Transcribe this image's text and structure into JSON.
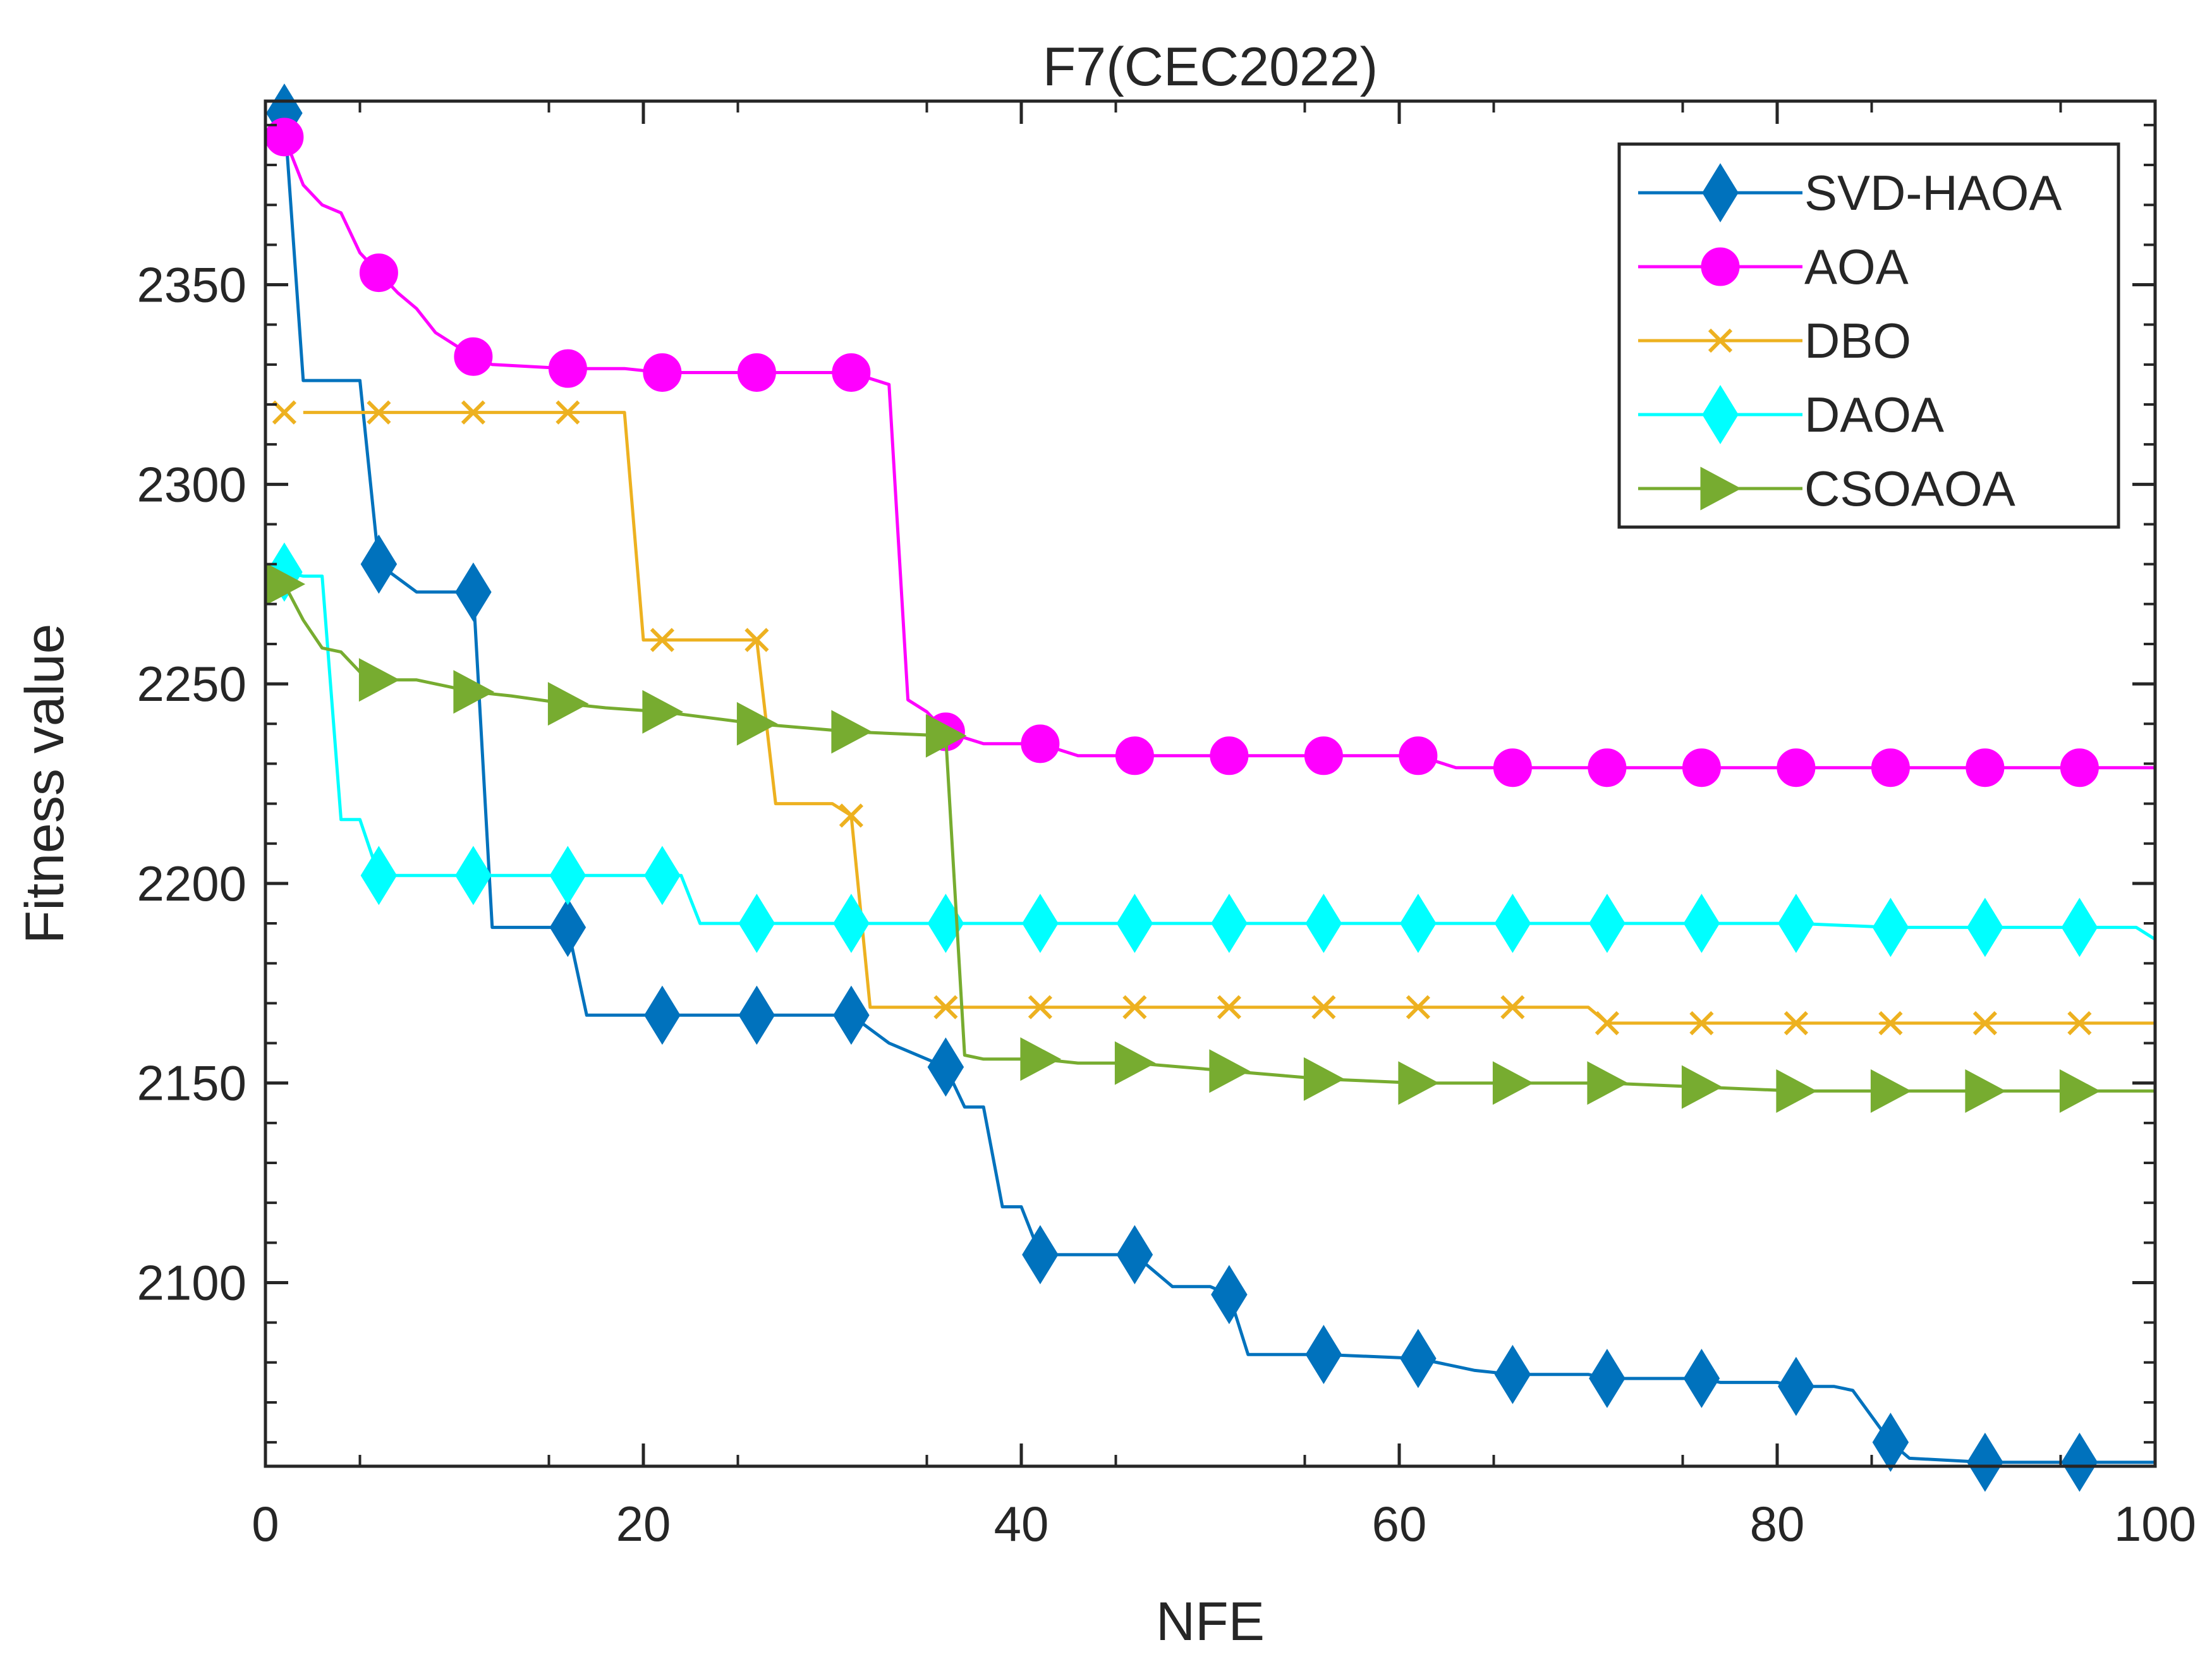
{
  "chart_data": {
    "type": "line",
    "title": "F7(CEC2022)",
    "xlabel": "NFE",
    "ylabel": "Fitness value",
    "xlim": [
      0,
      100
    ],
    "ylim": [
      2054,
      2396
    ],
    "xticks": [
      0,
      20,
      40,
      60,
      80,
      100
    ],
    "yticks": [
      2100,
      2150,
      2200,
      2250,
      2300,
      2350
    ],
    "grid": false,
    "legend_position": "top-right",
    "series": [
      {
        "name": "SVD-HAOA",
        "color": "#0072BD",
        "marker": "diamond",
        "marker_x": [
          1,
          6,
          11,
          16,
          21,
          26,
          31,
          36,
          41,
          46,
          51,
          56,
          61,
          66,
          71,
          76,
          81,
          86,
          91,
          96
        ],
        "points": [
          [
            1,
            2393
          ],
          [
            2,
            2326
          ],
          [
            5,
            2326
          ],
          [
            6,
            2280
          ],
          [
            8,
            2273
          ],
          [
            11,
            2273
          ],
          [
            12,
            2189
          ],
          [
            16,
            2189
          ],
          [
            17,
            2167
          ],
          [
            31,
            2167
          ],
          [
            33,
            2160
          ],
          [
            36,
            2154
          ],
          [
            37,
            2144
          ],
          [
            38,
            2144
          ],
          [
            39,
            2119
          ],
          [
            40,
            2119
          ],
          [
            41,
            2107
          ],
          [
            46,
            2107
          ],
          [
            48,
            2099
          ],
          [
            50,
            2099
          ],
          [
            51,
            2097
          ],
          [
            52,
            2082
          ],
          [
            56,
            2082
          ],
          [
            61,
            2081
          ],
          [
            64,
            2078
          ],
          [
            66,
            2077
          ],
          [
            70,
            2077
          ],
          [
            71,
            2076
          ],
          [
            76,
            2076
          ],
          [
            77,
            2075
          ],
          [
            80,
            2075
          ],
          [
            81,
            2074
          ],
          [
            83,
            2074
          ],
          [
            84,
            2073
          ],
          [
            86,
            2060
          ],
          [
            87,
            2056
          ],
          [
            91,
            2055
          ],
          [
            96,
            2055
          ],
          [
            100,
            2055
          ]
        ]
      },
      {
        "name": "AOA",
        "color": "#FF00FF",
        "marker": "circle",
        "marker_x": [
          1,
          6,
          11,
          16,
          21,
          26,
          31,
          36,
          41,
          46,
          51,
          56,
          61,
          66,
          71,
          76,
          81,
          86,
          91,
          96
        ],
        "points": [
          [
            1,
            2387
          ],
          [
            2,
            2375
          ],
          [
            3,
            2370
          ],
          [
            4,
            2368
          ],
          [
            5,
            2358
          ],
          [
            6,
            2353
          ],
          [
            7,
            2348
          ],
          [
            8,
            2344
          ],
          [
            9,
            2338
          ],
          [
            10,
            2335
          ],
          [
            11,
            2332
          ],
          [
            12,
            2330
          ],
          [
            16,
            2329
          ],
          [
            19,
            2329
          ],
          [
            21,
            2328
          ],
          [
            26,
            2328
          ],
          [
            31,
            2328
          ],
          [
            33,
            2325
          ],
          [
            34,
            2246
          ],
          [
            35,
            2243
          ],
          [
            36,
            2238
          ],
          [
            38,
            2235
          ],
          [
            41,
            2235
          ],
          [
            43,
            2232
          ],
          [
            46,
            2232
          ],
          [
            61,
            2232
          ],
          [
            63,
            2229
          ],
          [
            100,
            2229
          ]
        ]
      },
      {
        "name": "DBO",
        "color": "#EDB120",
        "marker": "x",
        "marker_x": [
          1,
          6,
          11,
          16,
          21,
          26,
          31,
          36,
          41,
          46,
          51,
          56,
          61,
          66,
          71,
          76,
          81,
          86,
          91,
          96
        ],
        "points": [
          [
            2,
            2318
          ],
          [
            19,
            2318
          ],
          [
            20,
            2261
          ],
          [
            26,
            2261
          ],
          [
            27,
            2220
          ],
          [
            30,
            2220
          ],
          [
            31,
            2217
          ],
          [
            32,
            2169
          ],
          [
            70,
            2169
          ],
          [
            71,
            2165
          ],
          [
            100,
            2165
          ]
        ]
      },
      {
        "name": "DAOA",
        "color": "#00FFFF",
        "marker": "diamond",
        "marker_x": [
          1,
          6,
          11,
          16,
          21,
          26,
          31,
          36,
          41,
          46,
          51,
          56,
          61,
          66,
          71,
          76,
          81,
          86,
          91,
          96
        ],
        "points": [
          [
            1,
            2278
          ],
          [
            2,
            2277
          ],
          [
            3,
            2277
          ],
          [
            4,
            2216
          ],
          [
            5,
            2216
          ],
          [
            6,
            2202
          ],
          [
            22,
            2202
          ],
          [
            23,
            2190
          ],
          [
            81,
            2190
          ],
          [
            86,
            2189
          ],
          [
            99,
            2189
          ],
          [
            100,
            2186
          ]
        ]
      },
      {
        "name": "CSOAOA",
        "color": "#77AC30",
        "marker": "triangle-right",
        "marker_x": [
          1,
          6,
          11,
          16,
          21,
          26,
          31,
          36,
          41,
          46,
          51,
          56,
          61,
          66,
          71,
          76,
          81,
          86,
          91,
          96
        ],
        "points": [
          [
            1,
            2275
          ],
          [
            2,
            2266
          ],
          [
            3,
            2259
          ],
          [
            4,
            2258
          ],
          [
            5,
            2253
          ],
          [
            6,
            2251
          ],
          [
            8,
            2251
          ],
          [
            11,
            2248
          ],
          [
            13,
            2247
          ],
          [
            16,
            2245
          ],
          [
            18,
            2244
          ],
          [
            21,
            2243
          ],
          [
            26,
            2240
          ],
          [
            31,
            2238
          ],
          [
            36,
            2237
          ],
          [
            37,
            2157
          ],
          [
            38,
            2156
          ],
          [
            41,
            2156
          ],
          [
            43,
            2155
          ],
          [
            46,
            2155
          ],
          [
            51,
            2153
          ],
          [
            56,
            2151
          ],
          [
            61,
            2150
          ],
          [
            66,
            2150
          ],
          [
            71,
            2150
          ],
          [
            76,
            2149
          ],
          [
            81,
            2148
          ],
          [
            86,
            2148
          ],
          [
            91,
            2148
          ],
          [
            100,
            2148
          ]
        ]
      }
    ]
  }
}
